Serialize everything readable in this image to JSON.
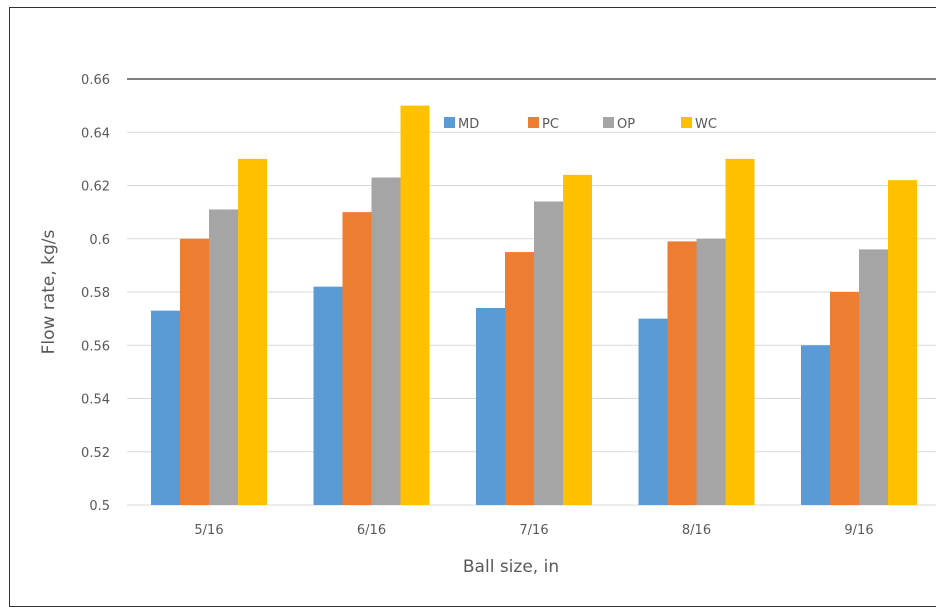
{
  "chart_data": {
    "type": "bar",
    "title": "",
    "xlabel": "Ball size, in",
    "ylabel": "Flow rate, kg/s",
    "categories": [
      "5/16",
      "6/16",
      "7/16",
      "8/16",
      "9/16"
    ],
    "ylim": [
      0.5,
      0.66
    ],
    "yticks": [
      "0.5",
      "0.52",
      "0.54",
      "0.56",
      "0.58",
      "0.6",
      "0.62",
      "0.64",
      "0.66"
    ],
    "grid": true,
    "legend_position": "top",
    "series": [
      {
        "name": "MD",
        "color": "#5B9BD5",
        "values": [
          0.573,
          0.582,
          0.574,
          0.57,
          0.56
        ]
      },
      {
        "name": "PC",
        "color": "#ED7D31",
        "values": [
          0.6,
          0.61,
          0.595,
          0.599,
          0.58
        ]
      },
      {
        "name": "OP",
        "color": "#A5A5A5",
        "values": [
          0.611,
          0.623,
          0.614,
          0.6,
          0.596
        ]
      },
      {
        "name": "WC",
        "color": "#FFC000",
        "values": [
          0.63,
          0.65,
          0.624,
          0.63,
          0.622
        ]
      }
    ]
  }
}
